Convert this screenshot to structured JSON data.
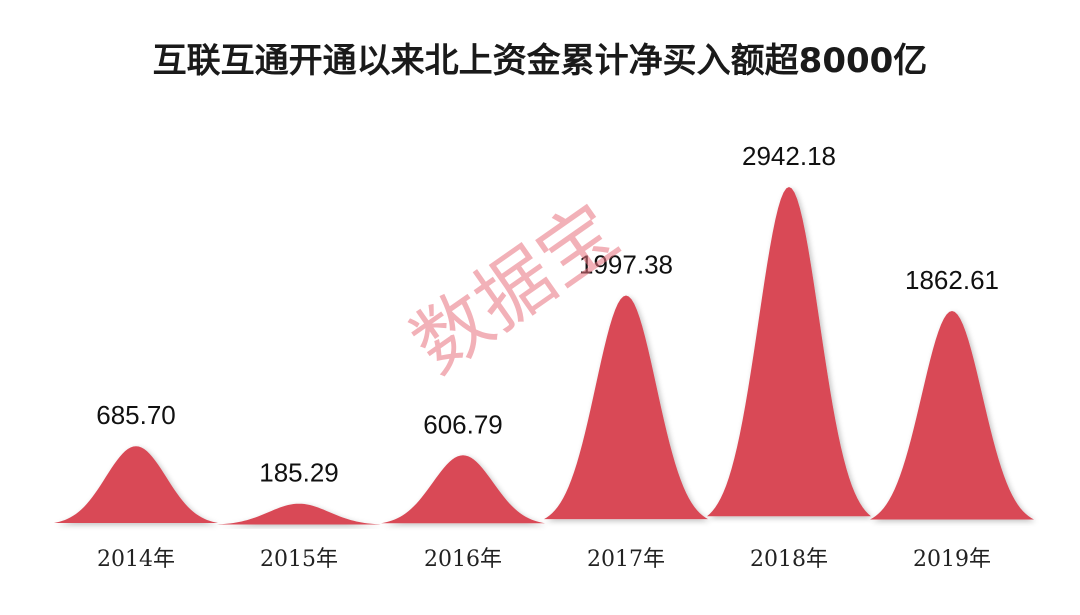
{
  "chart_data": {
    "type": "area",
    "title": "互联互通开通以来北上资金累计净买入额超8000亿",
    "categories": [
      "2014年",
      "2015年",
      "2016年",
      "2017年",
      "2018年",
      "2019年"
    ],
    "values": [
      685.7,
      185.29,
      606.79,
      1997.38,
      2942.18,
      1862.61
    ],
    "value_labels": [
      "685.70",
      "185.29",
      "606.79",
      "1997.38",
      "2942.18",
      "1862.61"
    ],
    "xlabel": "",
    "ylabel": "",
    "ylim": [
      0,
      3000
    ],
    "grid": false,
    "legend": "none",
    "color": "#d94a57",
    "watermark": "数据宝"
  }
}
